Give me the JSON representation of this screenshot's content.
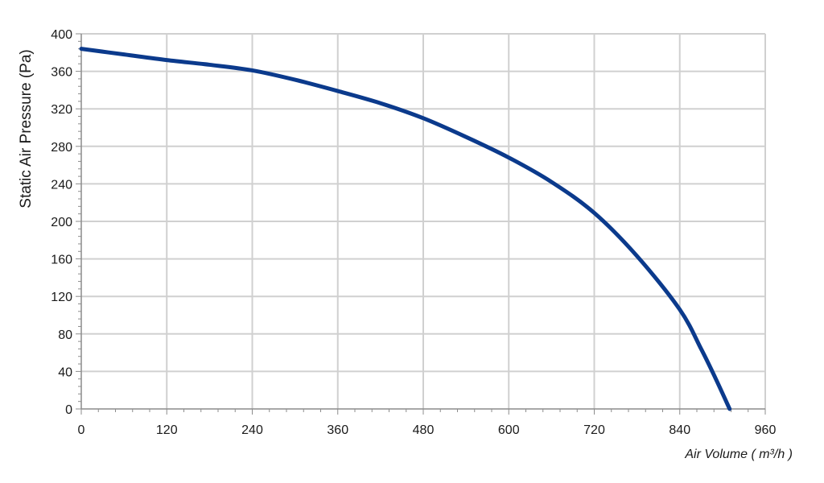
{
  "chart_data": {
    "type": "line",
    "title": "",
    "xlabel": "Air Volume ( m³/h )",
    "ylabel": "Static Air Pressure  (Pa)",
    "xlim": [
      0,
      960
    ],
    "ylim": [
      0,
      400
    ],
    "x_ticks": [
      0,
      120,
      240,
      360,
      480,
      600,
      720,
      840,
      960
    ],
    "y_ticks": [
      0,
      40,
      80,
      120,
      160,
      200,
      240,
      280,
      320,
      360,
      400
    ],
    "grid": true,
    "legend": "none",
    "series": [
      {
        "color": "#0b3a8c",
        "x": [
          0,
          60,
          120,
          180,
          240,
          300,
          360,
          420,
          480,
          540,
          600,
          660,
          720,
          780,
          840,
          870,
          890,
          910
        ],
        "y": [
          384,
          378,
          372,
          367,
          361,
          351,
          339,
          326,
          310,
          290,
          268,
          242,
          209,
          163,
          106,
          64,
          33,
          0
        ]
      }
    ],
    "colors": {
      "grid": "#d0d0d0",
      "axis": "#8c8c8c",
      "line": "#0b3a8c"
    }
  }
}
